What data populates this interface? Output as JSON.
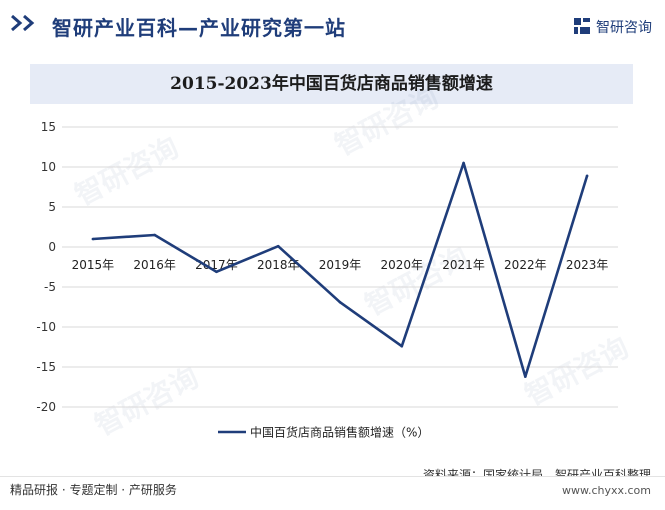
{
  "header": {
    "site_title": "智研产业百科—产业研究第一站",
    "brand": "智研咨询"
  },
  "watermark_text": "智研咨询",
  "chart_data": {
    "type": "line",
    "title": "2015-2023年中国百货店商品销售额增速",
    "xlabel": "",
    "ylabel": "",
    "categories": [
      "2015年",
      "2016年",
      "2017年",
      "2018年",
      "2019年",
      "2020年",
      "2021年",
      "2022年",
      "2023年"
    ],
    "series": [
      {
        "name": "中国百货店商品销售额增速（%）",
        "values": [
          1.0,
          1.5,
          -3.1,
          0.1,
          -6.9,
          -12.4,
          10.5,
          -16.2,
          8.9
        ],
        "color": "#1f3d7a"
      }
    ],
    "ylim": [
      -20,
      15
    ],
    "yticks": [
      15,
      10,
      5,
      0,
      -5,
      -10,
      -15,
      -20
    ],
    "grid": true,
    "legend_position": "bottom"
  },
  "footer": {
    "left": "精品研报 · 专题定制 · 产研服务",
    "source": "资料来源：国家统计局、智研产业百科整理",
    "website": "www.chyxx.com"
  }
}
